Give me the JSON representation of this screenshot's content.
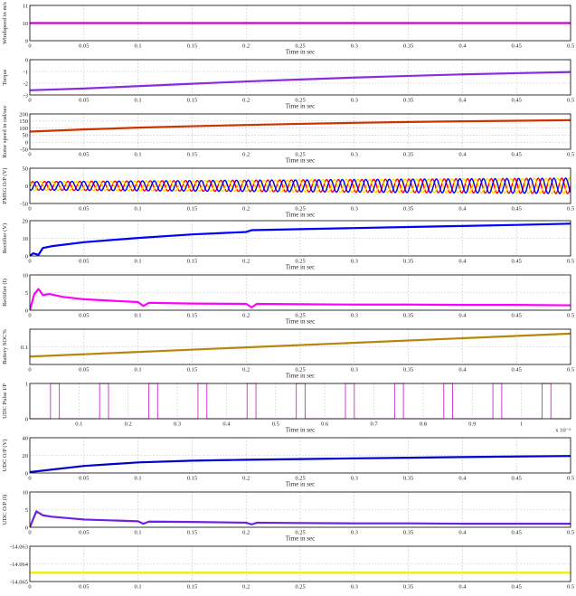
{
  "chart_data": [
    {
      "type": "line",
      "ylabel": "Windspeed in m/s",
      "xlabel": "Time in sec",
      "xlim": [
        0,
        0.5
      ],
      "ylim": [
        9,
        11
      ],
      "xticks": [
        "0",
        "0.05",
        "0.1",
        "0.15",
        "0.2",
        "0.25",
        "0.3",
        "0.35",
        "0.4",
        "0.45",
        "0.5"
      ],
      "yticks": [
        "9",
        "10",
        "11"
      ],
      "series": [
        {
          "color": "#cc00cc",
          "x": [
            0,
            0.5
          ],
          "y": [
            10,
            10
          ]
        }
      ]
    },
    {
      "type": "line",
      "ylabel": "Torque",
      "xlabel": "Time in sec",
      "xlim": [
        0,
        0.5
      ],
      "ylim": [
        -3,
        0
      ],
      "xticks": [
        "0",
        "0.05",
        "0.1",
        "0.15",
        "0.2",
        "0.25",
        "0.3",
        "0.35",
        "0.4",
        "0.45",
        "0.5"
      ],
      "yticks": [
        "-3",
        "-2",
        "-1",
        "0"
      ],
      "series": [
        {
          "color": "#8a2be2",
          "x": [
            0,
            0.05,
            0.1,
            0.15,
            0.2,
            0.25,
            0.3,
            0.35,
            0.4,
            0.45,
            0.5
          ],
          "y": [
            -2.6,
            -2.45,
            -2.25,
            -2.05,
            -1.85,
            -1.68,
            -1.52,
            -1.38,
            -1.25,
            -1.15,
            -1.05
          ]
        }
      ]
    },
    {
      "type": "line",
      "ylabel": "Rotor speed in rad/sec",
      "xlabel": "Time in sec",
      "xlim": [
        0,
        0.5
      ],
      "ylim": [
        -50,
        200
      ],
      "xticks": [
        "0",
        "0.05",
        "0.1",
        "0.15",
        "0.2",
        "0.25",
        "0.3",
        "0.35",
        "0.4",
        "0.45",
        "0.5"
      ],
      "yticks": [
        "-50",
        "0",
        "50",
        "100",
        "150",
        "200"
      ],
      "series": [
        {
          "color": "#cc3300",
          "x": [
            0,
            0.05,
            0.1,
            0.15,
            0.2,
            0.25,
            0.3,
            0.35,
            0.4,
            0.45,
            0.5
          ],
          "y": [
            75,
            90,
            103,
            113,
            122,
            130,
            137,
            143,
            148,
            152,
            156
          ]
        }
      ]
    },
    {
      "type": "line",
      "ylabel": "PMSG O/P (V)",
      "xlabel": "Time in sec",
      "xlim": [
        0,
        0.5
      ],
      "ylim": [
        -50,
        50
      ],
      "xticks": [
        "0",
        "0.05",
        "0.1",
        "0.15",
        "0.2",
        "0.25",
        "0.3",
        "0.35",
        "0.4",
        "0.45",
        "0.5"
      ],
      "yticks": [
        "-50",
        "0",
        "50"
      ],
      "signal": {
        "kind": "three_phase_sine",
        "amplitude_start": 12,
        "amplitude_end": 22,
        "cycles": 46
      },
      "series": [
        {
          "color": "#ff0000"
        },
        {
          "color": "#ffdd00"
        },
        {
          "color": "#0000ff"
        }
      ]
    },
    {
      "type": "line",
      "ylabel": "Rectifier (V)",
      "xlabel": "Time in sec",
      "xlim": [
        0,
        0.5
      ],
      "ylim": [
        0,
        20
      ],
      "xticks": [
        "0",
        "0.05",
        "0.1",
        "0.15",
        "0.2",
        "0.25",
        "0.3",
        "0.35",
        "0.4",
        "0.45",
        "0.5"
      ],
      "yticks": [
        "0",
        "10",
        "20"
      ],
      "series": [
        {
          "color": "#0000ff",
          "x": [
            0,
            0.003,
            0.008,
            0.012,
            0.02,
            0.05,
            0.1,
            0.15,
            0.2,
            0.205,
            0.25,
            0.3,
            0.35,
            0.4,
            0.45,
            0.5
          ],
          "y": [
            0,
            1.5,
            0.6,
            4.5,
            5.5,
            7.8,
            10.2,
            12.2,
            13.6,
            14.6,
            15.2,
            15.8,
            16.4,
            17,
            17.6,
            18.3
          ]
        }
      ]
    },
    {
      "type": "line",
      "ylabel": "Rectifier (I)",
      "xlabel": "Time in sec",
      "xlim": [
        0,
        0.5
      ],
      "ylim": [
        0,
        10
      ],
      "xticks": [
        "0",
        "0.05",
        "0.1",
        "0.15",
        "0.2",
        "0.25",
        "0.3",
        "0.35",
        "0.4",
        "0.45",
        "0.5"
      ],
      "yticks": [
        "0",
        "5",
        "10"
      ],
      "series": [
        {
          "color": "#ff00ff",
          "x": [
            0,
            0.004,
            0.008,
            0.012,
            0.018,
            0.03,
            0.05,
            0.1,
            0.105,
            0.11,
            0.15,
            0.2,
            0.205,
            0.21,
            0.25,
            0.3,
            0.35,
            0.4,
            0.45,
            0.5
          ],
          "y": [
            0,
            4.5,
            6,
            4.3,
            4.6,
            3.8,
            3.1,
            2.3,
            1.2,
            2.1,
            1.9,
            1.8,
            0.8,
            1.8,
            1.7,
            1.6,
            1.6,
            1.5,
            1.5,
            1.4
          ]
        }
      ]
    },
    {
      "type": "line",
      "ylabel": "Battery SOC%",
      "xlabel": "Time in sec",
      "xlim": [
        0,
        0.5
      ],
      "ylim": [
        0,
        0.2
      ],
      "xticks": [
        "0",
        "0.05",
        "0.1",
        "0.15",
        "0.2",
        "0.25",
        "0.3",
        "0.35",
        "0.4",
        "0.45",
        "0.5"
      ],
      "yticks": [
        "0.1"
      ],
      "series": [
        {
          "color": "#b8860b",
          "x": [
            0,
            0.5
          ],
          "y": [
            0.045,
            0.175
          ]
        }
      ]
    },
    {
      "type": "line",
      "ylabel": "UDC Pulse I/P",
      "xlabel": "Time in sec",
      "axis_multiplier": "x 10⁻³",
      "xlim": [
        0,
        1.1
      ],
      "ylim": [
        0,
        1
      ],
      "xticks": [
        "0.1",
        "0.2",
        "0.3",
        "0.4",
        "0.5",
        "0.6",
        "0.7",
        "0.8",
        "0.9",
        "1"
      ],
      "yticks": [
        "0",
        "1"
      ],
      "signal": {
        "kind": "pulse_train",
        "period": 0.1,
        "width": 0.018,
        "first_rise": 0.042
      },
      "series": [
        {
          "color": "#d040d0"
        }
      ]
    },
    {
      "type": "line",
      "ylabel": "UDC O/P (V)",
      "xlabel": "Time in sec",
      "xlim": [
        0,
        0.5
      ],
      "ylim": [
        0,
        40
      ],
      "xticks": [
        "0",
        "0.05",
        "0.1",
        "0.15",
        "0.2",
        "0.25",
        "0.3",
        "0.35",
        "0.4",
        "0.45",
        "0.5"
      ],
      "yticks": [
        "0",
        "20",
        "40"
      ],
      "series": [
        {
          "color": "#0000cc",
          "x": [
            0,
            0.05,
            0.1,
            0.15,
            0.2,
            0.25,
            0.3,
            0.35,
            0.4,
            0.45,
            0.5
          ],
          "y": [
            1,
            8,
            12,
            14,
            15,
            15.8,
            16.6,
            17.3,
            18.1,
            18.7,
            19.3
          ]
        }
      ]
    },
    {
      "type": "line",
      "ylabel": "UDC O/P (I)",
      "xlabel": "Time in sec",
      "xlim": [
        0,
        0.5
      ],
      "ylim": [
        0,
        10
      ],
      "xticks": [
        "0",
        "0.05",
        "0.1",
        "0.15",
        "0.2",
        "0.25",
        "0.3",
        "0.35",
        "0.4",
        "0.45",
        "0.5"
      ],
      "yticks": [
        "0",
        "5",
        "10"
      ],
      "series": [
        {
          "color": "#7020e0",
          "x": [
            0,
            0.006,
            0.012,
            0.02,
            0.05,
            0.1,
            0.105,
            0.11,
            0.15,
            0.2,
            0.205,
            0.21,
            0.25,
            0.3,
            0.35,
            0.4,
            0.45,
            0.5
          ],
          "y": [
            0,
            4.5,
            3.4,
            3,
            2.2,
            1.7,
            1,
            1.6,
            1.5,
            1.3,
            0.8,
            1.3,
            1.2,
            1.1,
            1.1,
            1,
            1,
            1
          ]
        }
      ]
    },
    {
      "type": "line",
      "ylabel": "",
      "xlabel": "",
      "xlim": [
        0,
        0.5
      ],
      "ylim": [
        -14.065,
        -14.063
      ],
      "xticks": [
        "0",
        "0.05",
        "0.1",
        "0.15",
        "0.2",
        "0.25",
        "0.3",
        "0.35",
        "0.4",
        "0.45",
        "0.5"
      ],
      "yticks": [
        "-14.063",
        "-14.064",
        "-14.065"
      ],
      "series": [
        {
          "color": "#eeee00",
          "x": [
            0,
            0.5
          ],
          "y": [
            -14.0645,
            -14.0645
          ]
        }
      ]
    }
  ]
}
